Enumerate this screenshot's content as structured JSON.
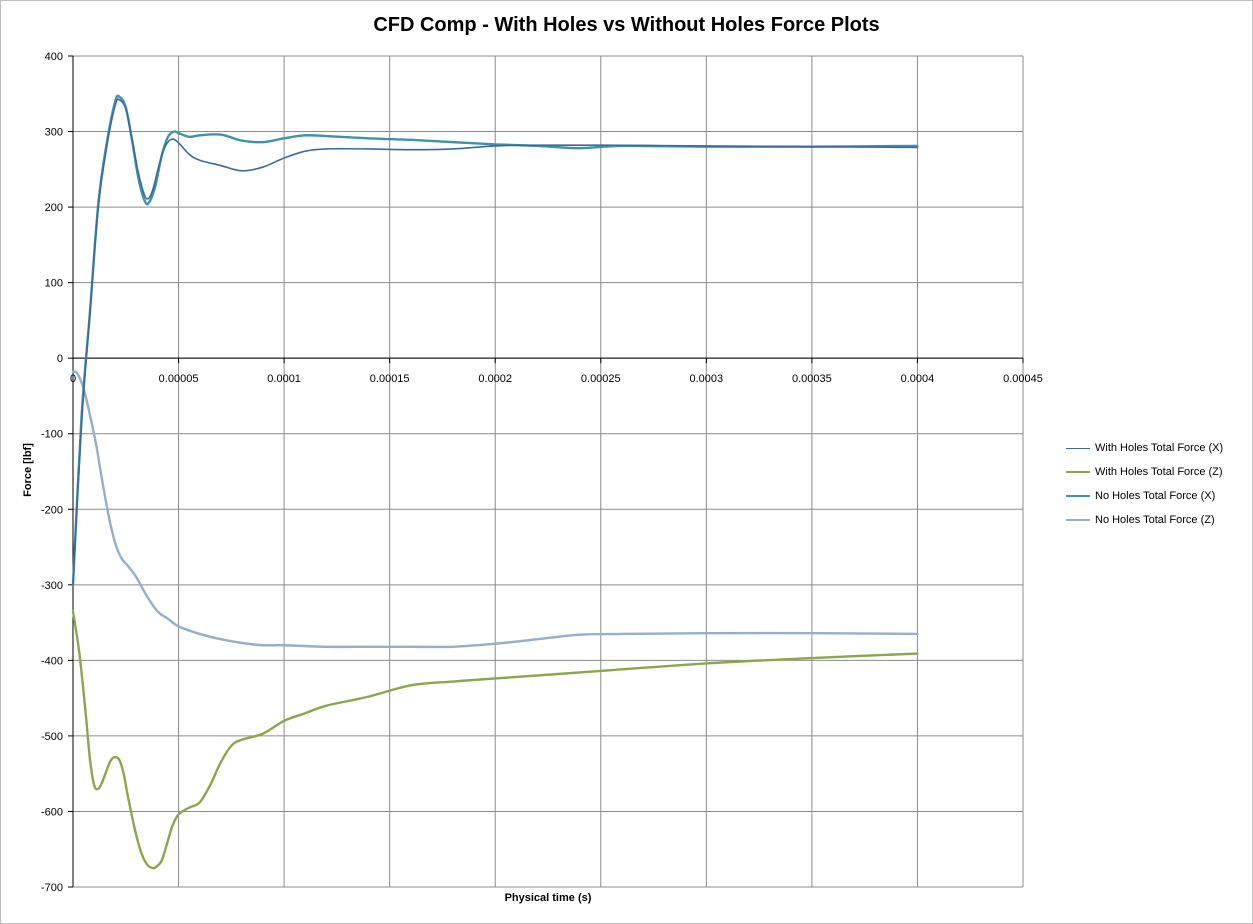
{
  "chart_data": {
    "type": "line",
    "title": "CFD Comp - With Holes vs Without Holes Force Plots",
    "xlabel": "Physical  time (s)",
    "ylabel": "Force  [lbf]",
    "xlim": [
      0,
      0.00045
    ],
    "ylim": [
      -700,
      400
    ],
    "x_ticks": [
      "0",
      "0.00005",
      "0.0001",
      "0.00015",
      "0.0002",
      "0.00025",
      "0.0003",
      "0.00035",
      "0.0004",
      "0.00045"
    ],
    "y_ticks": [
      "400",
      "300",
      "200",
      "100",
      "0",
      "-100",
      "-200",
      "-300",
      "-400",
      "-500",
      "-600",
      "-700"
    ],
    "grid": true,
    "legend_position": "right",
    "series": [
      {
        "name": "With Holes Total Force (X)",
        "color": "#3b6aa3",
        "width": 1.6,
        "x": [
          0,
          4e-06,
          8e-06,
          1.2e-05,
          1.6e-05,
          2e-05,
          2.2e-05,
          2.5e-05,
          2.8e-05,
          3.1e-05,
          3.4e-05,
          3.6e-05,
          3.8e-05,
          4.1e-05,
          4.4e-05,
          4.7e-05,
          5e-05,
          5.5e-05,
          6e-05,
          7e-05,
          8e-05,
          9e-05,
          0.0001,
          0.00011,
          0.00012,
          0.00014,
          0.00016,
          0.00018,
          0.0002,
          0.00022,
          0.00025,
          0.0003,
          0.00035,
          0.0004
        ],
        "y": [
          -300,
          -90,
          60,
          200,
          280,
          335,
          342,
          330,
          290,
          245,
          215,
          212,
          225,
          258,
          282,
          290,
          285,
          270,
          262,
          255,
          248,
          253,
          265,
          274,
          277,
          277,
          276,
          277,
          281,
          282,
          282,
          281,
          280,
          279
        ]
      },
      {
        "name": "With Holes Total Force (Z)",
        "color": "#8aa84b",
        "width": 2.4,
        "x": [
          0,
          3e-06,
          6e-06,
          8e-06,
          1e-05,
          1.2e-05,
          1.4e-05,
          1.6e-05,
          1.8e-05,
          2e-05,
          2.2e-05,
          2.4e-05,
          2.6e-05,
          2.9e-05,
          3.2e-05,
          3.5e-05,
          3.8e-05,
          4e-05,
          4.2e-05,
          4.4e-05,
          4.7e-05,
          5e-05,
          5.5e-05,
          6e-05,
          6.5e-05,
          7e-05,
          7.5e-05,
          8e-05,
          9e-05,
          0.0001,
          0.00011,
          0.00012,
          0.00014,
          0.00016,
          0.00018,
          0.0002,
          0.00025,
          0.0003,
          0.00035,
          0.0004
        ],
        "y": [
          -335,
          -390,
          -470,
          -530,
          -565,
          -570,
          -560,
          -545,
          -532,
          -528,
          -532,
          -550,
          -580,
          -620,
          -652,
          -670,
          -675,
          -672,
          -665,
          -648,
          -620,
          -604,
          -595,
          -588,
          -565,
          -535,
          -513,
          -505,
          -497,
          -480,
          -470,
          -460,
          -448,
          -433,
          -428,
          -424,
          -414,
          -404,
          -397,
          -391
        ]
      },
      {
        "name": "No Holes Total Force (X)",
        "color": "#3f93a8",
        "width": 2.4,
        "x": [
          0,
          4e-06,
          8e-06,
          1.2e-05,
          1.6e-05,
          2e-05,
          2.2e-05,
          2.5e-05,
          2.8e-05,
          3.1e-05,
          3.4e-05,
          3.6e-05,
          3.9e-05,
          4.2e-05,
          4.5e-05,
          4.8e-05,
          5e-05,
          5.5e-05,
          6e-05,
          7e-05,
          8e-05,
          9e-05,
          0.0001,
          0.00011,
          0.00012,
          0.00014,
          0.00016,
          0.00018,
          0.0002,
          0.00022,
          0.00024,
          0.00026,
          0.0003,
          0.00035,
          0.0004
        ],
        "y": [
          -300,
          -80,
          60,
          205,
          285,
          340,
          346,
          332,
          288,
          238,
          208,
          206,
          228,
          268,
          293,
          300,
          298,
          293,
          295,
          296,
          288,
          286,
          291,
          295,
          294,
          291,
          289,
          286,
          283,
          281,
          278,
          281,
          280,
          280,
          281
        ]
      },
      {
        "name": "No Holes Total Force (Z)",
        "color": "#94aecb",
        "width": 2.4,
        "x": [
          0,
          2e-06,
          5e-06,
          8e-06,
          1.1e-05,
          1.4e-05,
          1.7e-05,
          2e-05,
          2.3e-05,
          2.6e-05,
          3e-05,
          3.5e-05,
          4e-05,
          4.5e-05,
          5e-05,
          6e-05,
          7e-05,
          8e-05,
          9e-05,
          0.0001,
          0.00012,
          0.00014,
          0.00016,
          0.00018,
          0.0002,
          0.00022,
          0.00024,
          0.00026,
          0.0003,
          0.00035,
          0.0004
        ],
        "y": [
          -18,
          -20,
          -40,
          -75,
          -115,
          -165,
          -210,
          -245,
          -265,
          -275,
          -290,
          -315,
          -335,
          -345,
          -355,
          -365,
          -372,
          -377,
          -380,
          -380,
          -382,
          -382,
          -382,
          -382,
          -378,
          -372,
          -366,
          -365,
          -364,
          -364,
          -365
        ]
      }
    ]
  }
}
